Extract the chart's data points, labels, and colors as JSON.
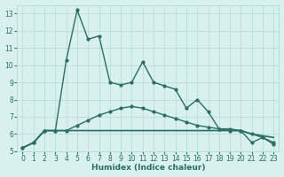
{
  "line1_x": [
    0,
    1,
    2,
    3,
    4,
    5,
    6,
    7,
    8,
    9,
    10,
    11,
    12,
    13,
    14,
    15,
    16,
    17,
    18,
    19,
    20,
    21,
    22,
    23
  ],
  "line1_y": [
    5.2,
    5.5,
    6.2,
    6.2,
    10.3,
    13.2,
    11.5,
    11.7,
    9.0,
    8.85,
    9.0,
    10.2,
    9.0,
    8.8,
    8.6,
    7.5,
    8.0,
    7.3,
    6.3,
    6.3,
    6.2,
    5.5,
    5.8,
    5.4
  ],
  "line2_x": [
    0,
    1,
    2,
    3,
    4,
    5,
    6,
    7,
    8,
    9,
    10,
    11,
    12,
    13,
    14,
    15,
    16,
    17,
    18,
    19,
    20,
    21,
    22,
    23
  ],
  "line2_y": [
    5.2,
    5.5,
    6.2,
    6.2,
    6.2,
    6.5,
    6.8,
    7.1,
    7.3,
    7.5,
    7.6,
    7.5,
    7.3,
    7.1,
    6.9,
    6.7,
    6.5,
    6.4,
    6.3,
    6.2,
    6.2,
    6.0,
    5.8,
    5.5
  ],
  "line3_x": [
    0,
    1,
    2,
    3,
    4,
    5,
    6,
    7,
    8,
    9,
    10,
    11,
    12,
    13,
    14,
    15,
    16,
    17,
    18,
    19,
    20,
    21,
    22,
    23
  ],
  "line3_y": [
    5.2,
    5.5,
    6.2,
    6.2,
    6.2,
    6.2,
    6.2,
    6.2,
    6.2,
    6.2,
    6.2,
    6.2,
    6.2,
    6.2,
    6.2,
    6.2,
    6.2,
    6.2,
    6.2,
    6.2,
    6.2,
    6.0,
    5.9,
    5.8
  ],
  "line_color": "#2a6e63",
  "bg_color": "#d8f0ee",
  "grid_color": "#b8ddd8",
  "xlabel": "Humidex (Indice chaleur)",
  "ylim": [
    5,
    13.5
  ],
  "xlim": [
    -0.5,
    23.5
  ],
  "yticks": [
    5,
    6,
    7,
    8,
    9,
    10,
    11,
    12,
    13
  ],
  "xticks": [
    0,
    1,
    2,
    3,
    4,
    5,
    6,
    7,
    8,
    9,
    10,
    11,
    12,
    13,
    14,
    15,
    16,
    17,
    18,
    19,
    20,
    21,
    22,
    23
  ]
}
